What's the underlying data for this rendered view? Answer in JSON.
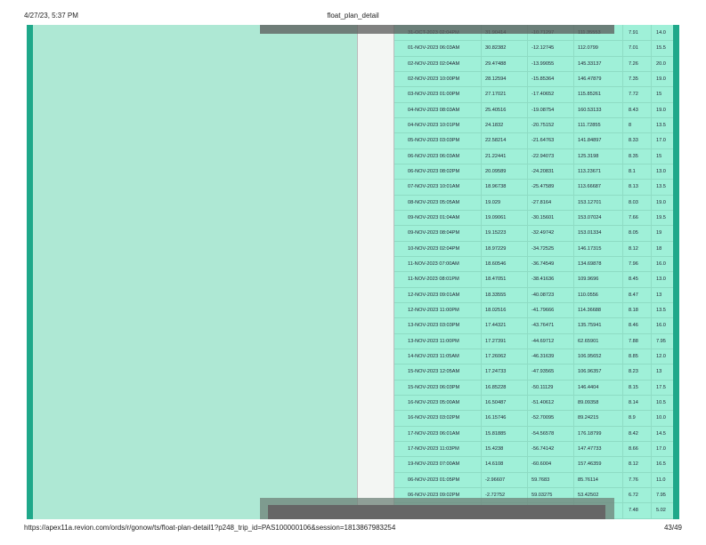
{
  "header": {
    "datetime": "4/27/23, 5:37 PM",
    "title": "float_plan_detail"
  },
  "footer": {
    "url": "https://apex11a.revion.com/ords/r/gonow/ts/float-plan-detail1?p248_trip_id=PAS100000106&session=1813867983254",
    "page": "43/49"
  },
  "rows": [
    [
      "31-OCT-2023 02:04PM",
      "31.90414",
      "-10.71297",
      "111.35553",
      "7.91",
      "14.0"
    ],
    [
      "01-NOV-2023 06:03AM",
      "30.82382",
      "-12.12745",
      "112.0799",
      "7.01",
      "15.5"
    ],
    [
      "02-NOV-2023 02:04AM",
      "29.47488",
      "-13.99055",
      "145.33137",
      "7.26",
      "20.0"
    ],
    [
      "02-NOV-2023 10:00PM",
      "28.12594",
      "-15.85364",
      "146.47879",
      "7.35",
      "19.0"
    ],
    [
      "03-NOV-2023 01:00PM",
      "27.17021",
      "-17.40652",
      "115.85261",
      "7.72",
      "15"
    ],
    [
      "04-NOV-2023 08:03AM",
      "25.40516",
      "-19.08754",
      "160.53133",
      "8.43",
      "19.0"
    ],
    [
      "04-NOV-2023 10:01PM",
      "24.1832",
      "-20.75152",
      "111.72855",
      "8",
      "13.5"
    ],
    [
      "05-NOV-2023 03:03PM",
      "22.58214",
      "-21.64763",
      "141.84897",
      "8.33",
      "17.0"
    ],
    [
      "06-NOV-2023 06:03AM",
      "21.22441",
      "-22.94073",
      "125.3198",
      "8.35",
      "15"
    ],
    [
      "06-NOV-2023 08:02PM",
      "20.09589",
      "-24.20831",
      "113.23671",
      "8.1",
      "13.0"
    ],
    [
      "07-NOV-2023 10:01AM",
      "18.96738",
      "-25.47589",
      "113.66687",
      "8.13",
      "13.5"
    ],
    [
      "08-NOV-2023 05:05AM",
      "19.029",
      "-27.8164",
      "153.12701",
      "8.03",
      "19.0"
    ],
    [
      "09-NOV-2023 01:04AM",
      "19.09061",
      "-30.15601",
      "153.07024",
      "7.66",
      "19.5"
    ],
    [
      "09-NOV-2023 08:04PM",
      "19.15223",
      "-32.49742",
      "153.01334",
      "8.05",
      "19"
    ],
    [
      "10-NOV-2023 02:04PM",
      "18.97229",
      "-34.72525",
      "146.17315",
      "8.12",
      "18"
    ],
    [
      "11-NOV-2023 07:00AM",
      "18.60546",
      "-36.74549",
      "134.69878",
      "7.96",
      "16.0"
    ],
    [
      "11-NOV-2023 08:01PM",
      "18.47051",
      "-38.41636",
      "109.9696",
      "8.45",
      "13.0"
    ],
    [
      "12-NOV-2023 09:01AM",
      "18.33555",
      "-40.08723",
      "110.0556",
      "8.47",
      "13"
    ],
    [
      "12-NOV-2023 11:00PM",
      "18.02516",
      "-41.79666",
      "114.36688",
      "8.18",
      "13.5"
    ],
    [
      "13-NOV-2023 03:03PM",
      "17.44321",
      "-43.76471",
      "135.75941",
      "8.46",
      "16.0"
    ],
    [
      "13-NOV-2023 11:00PM",
      "17.27391",
      "-44.69712",
      "62.65901",
      "7.88",
      "7.95"
    ],
    [
      "14-NOV-2023 11:05AM",
      "17.26062",
      "-46.31639",
      "106.95652",
      "8.85",
      "12.0"
    ],
    [
      "15-NOV-2023 12:05AM",
      "17.24733",
      "-47.93565",
      "106.96357",
      "8.23",
      "13"
    ],
    [
      "15-NOV-2023 06:03PM",
      "16.85228",
      "-50.11129",
      "146.4404",
      "8.15",
      "17.5"
    ],
    [
      "16-NOV-2023 05:00AM",
      "16.50487",
      "-51.40612",
      "89.09358",
      "8.14",
      "10.5"
    ],
    [
      "16-NOV-2023 03:02PM",
      "16.15746",
      "-52.70095",
      "89.24215",
      "8.9",
      "10.0"
    ],
    [
      "17-NOV-2023 06:01AM",
      "15.81885",
      "-54.56578",
      "176.18799",
      "8.42",
      "14.5"
    ],
    [
      "17-NOV-2023 11:03PM",
      "15.4238",
      "-56.74142",
      "147.47733",
      "8.66",
      "17.0"
    ],
    [
      "19-NOV-2023 07:00AM",
      "14.6108",
      "-60.6004",
      "157.46359",
      "8.12",
      "16.5"
    ],
    [
      "06-NOV-2023 01:05PM",
      "-2.96607",
      "59.7683",
      "85.76114",
      "7.76",
      "11.0"
    ],
    [
      "06-NOV-2023 09:02PM",
      "-2.72752",
      "59.03275",
      "53.42502",
      "6.72",
      "7.95"
    ],
    [
      "",
      "",
      "",
      "",
      "7.48",
      "5.02"
    ]
  ]
}
